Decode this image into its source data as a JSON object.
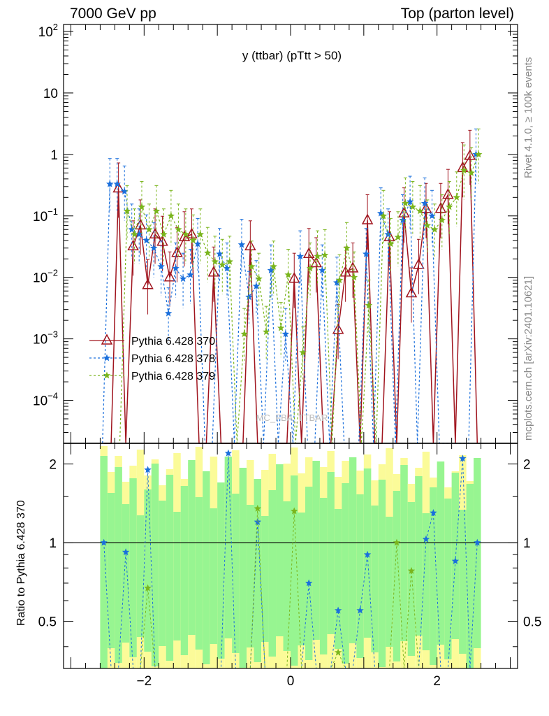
{
  "header": {
    "left": "7000 GeV pp",
    "right": "Top (parton level)"
  },
  "side": {
    "rivet": "Rivet 4.1.0, ≥ 100k events",
    "mcplots": "mcplots.cern.ch [arXiv:2401.10621]"
  },
  "plot_title": "y (ttbar) (pTtt > 50)",
  "watermark": "MC_FBA_TTBAR",
  "ratio_ylabel": "Ratio to Pythia 6.428 370",
  "colors": {
    "s370": "#a0141e",
    "s378": "#1a6fdc",
    "s379": "#7ab51d",
    "band_green": "#97f591",
    "band_yellow": "#fbfb99"
  },
  "chart_data": {
    "type": "line",
    "xlim": [
      -3.1,
      3.1
    ],
    "ylim": [
      2e-05,
      130
    ],
    "yscale": "log",
    "ratio_ylim": [
      0.33,
      2.4
    ],
    "xticks": [
      "−2",
      "0",
      "2"
    ],
    "xtick_values": [
      -2,
      0,
      2
    ],
    "yticks_main": [
      {
        "v": 100,
        "b": "10",
        "e": "2"
      },
      {
        "v": 10,
        "b": "10",
        "e": ""
      },
      {
        "v": 1,
        "b": "1",
        "e": ""
      },
      {
        "v": 0.1,
        "b": "10",
        "e": "−1"
      },
      {
        "v": 0.01,
        "b": "10",
        "e": "−2"
      },
      {
        "v": 0.001,
        "b": "10",
        "e": "−3"
      },
      {
        "v": 0.0001,
        "b": "10",
        "e": "−4"
      }
    ],
    "yticks_ratio": [
      {
        "v": 2,
        "l": "2"
      },
      {
        "v": 1,
        "l": "1"
      },
      {
        "v": 0.5,
        "l": "0.5"
      }
    ],
    "x": [
      -2.55,
      -2.45,
      -2.35,
      -2.25,
      -2.15,
      -2.05,
      -1.95,
      -1.85,
      -1.75,
      -1.65,
      -1.55,
      -1.45,
      -1.35,
      -1.25,
      -1.15,
      -1.05,
      -0.95,
      -0.85,
      -0.75,
      -0.65,
      -0.55,
      -0.45,
      -0.35,
      -0.25,
      -0.15,
      -0.05,
      0.05,
      0.15,
      0.25,
      0.35,
      0.45,
      0.55,
      0.65,
      0.75,
      0.85,
      0.95,
      1.05,
      1.15,
      1.25,
      1.35,
      1.45,
      1.55,
      1.65,
      1.75,
      1.85,
      1.95,
      2.05,
      2.15,
      2.25,
      2.35,
      2.45,
      2.55
    ],
    "series": [
      {
        "name": "Pythia 6.428 370",
        "values": [
          0,
          0,
          0.28,
          0,
          0.032,
          0.07,
          0.0075,
          0.05,
          0.038,
          0.01,
          0.025,
          0.045,
          0.05,
          0,
          0,
          0.012,
          0,
          0,
          0,
          0,
          0.032,
          0,
          0,
          0,
          0,
          0,
          0.0095,
          0,
          0.024,
          0.017,
          0,
          0,
          0.0014,
          0.012,
          0.014,
          0,
          0.085,
          0,
          0,
          0.045,
          0,
          0.11,
          0.0055,
          0.016,
          0.13,
          0,
          0.13,
          0.22,
          0,
          0.6,
          0.95,
          0
        ]
      },
      {
        "name": "Pythia 6.428 378",
        "values": [
          0,
          0.33,
          0.33,
          0.25,
          0.06,
          0.05,
          0.04,
          0.03,
          0.015,
          0.0026,
          0.014,
          0.0095,
          0.011,
          0.035,
          0,
          0,
          0.024,
          0.014,
          0,
          0.034,
          0.0048,
          0.0072,
          0,
          0.013,
          0,
          0.0012,
          0,
          0.022,
          0,
          0,
          0.013,
          0,
          0.0082,
          0,
          0,
          0,
          0.024,
          0,
          0.11,
          0.05,
          0,
          0.085,
          0.17,
          0,
          0.16,
          0.1,
          0,
          0,
          0,
          0,
          0,
          1.0
        ]
      },
      {
        "name": "Pythia 6.428 379",
        "values": [
          0,
          0,
          0,
          0.12,
          0.05,
          0.14,
          0.06,
          0.12,
          0.05,
          0.1,
          0.06,
          0.05,
          0.04,
          0.05,
          0.025,
          0.018,
          0.016,
          0.018,
          0,
          0.0012,
          0.015,
          0.0095,
          0.0013,
          0.015,
          0.0015,
          0.011,
          0,
          0.0006,
          0.014,
          0.022,
          0.023,
          0,
          0.009,
          0.03,
          0.01,
          0,
          0.0035,
          0,
          0.1,
          0.035,
          0.045,
          0.16,
          0.14,
          0.12,
          0.07,
          0.06,
          0.085,
          0.14,
          0.2,
          0.55,
          0.5,
          1.0
        ]
      }
    ],
    "ratio_series": [
      {
        "name": "Pythia 6.428 378",
        "x": [
          -2.55,
          -2.25,
          -1.95,
          -0.85,
          -0.45,
          0.25,
          0.65,
          0.95,
          1.05,
          1.85,
          1.95,
          2.25,
          2.35,
          2.55
        ],
        "values": [
          1.0,
          0.92,
          1.9,
          2.2,
          1.2,
          0.7,
          0.55,
          0.55,
          0.9,
          1.03,
          1.3,
          0.85,
          2.1,
          1.0
        ]
      },
      {
        "name": "Pythia 6.428 379",
        "x": [
          -1.95,
          -0.45,
          0.05,
          0.65,
          1.45,
          1.65
        ],
        "values": [
          0.67,
          1.35,
          1.32,
          0.38,
          1.0,
          0.78
        ]
      }
    ]
  },
  "legend": [
    {
      "label": "Pythia 6.428 370"
    },
    {
      "label": "Pythia 6.428 378"
    },
    {
      "label": "Pythia 6.428 379"
    }
  ]
}
